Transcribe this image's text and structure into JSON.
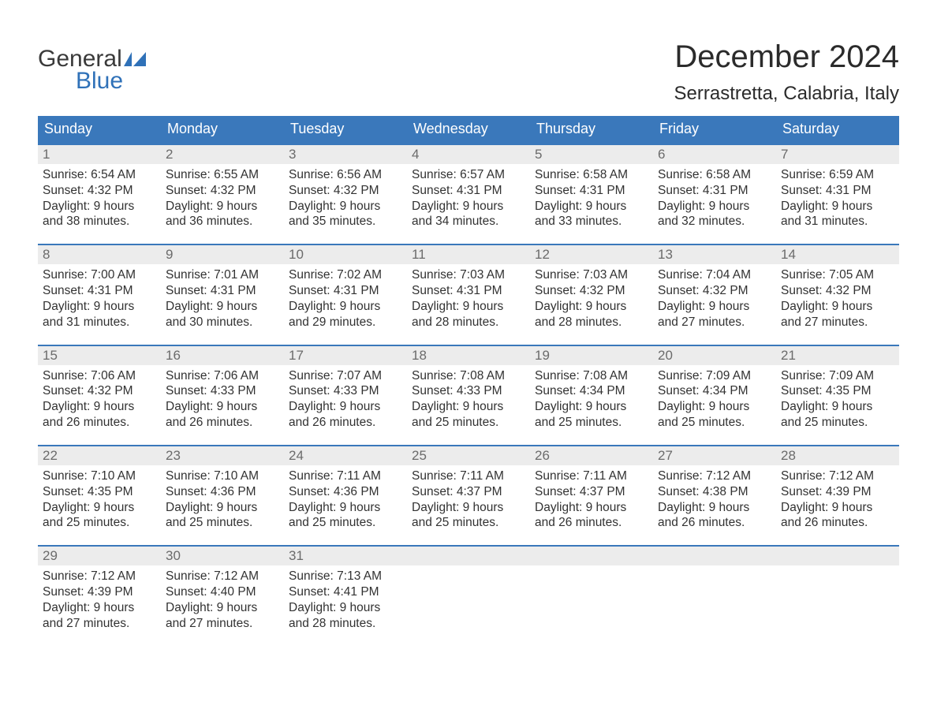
{
  "logo": {
    "line1": "General",
    "line2": "Blue",
    "accent_color": "#2f71b8",
    "text_color": "#3a3a3a"
  },
  "title": "December 2024",
  "location": "Serrastretta, Calabria, Italy",
  "colors": {
    "header_bg": "#3a78bb",
    "header_text": "#ffffff",
    "daynum_bg": "#ececec",
    "daynum_text": "#6b6b6b",
    "body_text": "#323232",
    "week_border": "#3a78bb",
    "page_bg": "#ffffff"
  },
  "weekdays": [
    "Sunday",
    "Monday",
    "Tuesday",
    "Wednesday",
    "Thursday",
    "Friday",
    "Saturday"
  ],
  "weeks": [
    [
      {
        "n": "1",
        "sunrise": "Sunrise: 6:54 AM",
        "sunset": "Sunset: 4:32 PM",
        "d1": "Daylight: 9 hours",
        "d2": "and 38 minutes."
      },
      {
        "n": "2",
        "sunrise": "Sunrise: 6:55 AM",
        "sunset": "Sunset: 4:32 PM",
        "d1": "Daylight: 9 hours",
        "d2": "and 36 minutes."
      },
      {
        "n": "3",
        "sunrise": "Sunrise: 6:56 AM",
        "sunset": "Sunset: 4:32 PM",
        "d1": "Daylight: 9 hours",
        "d2": "and 35 minutes."
      },
      {
        "n": "4",
        "sunrise": "Sunrise: 6:57 AM",
        "sunset": "Sunset: 4:31 PM",
        "d1": "Daylight: 9 hours",
        "d2": "and 34 minutes."
      },
      {
        "n": "5",
        "sunrise": "Sunrise: 6:58 AM",
        "sunset": "Sunset: 4:31 PM",
        "d1": "Daylight: 9 hours",
        "d2": "and 33 minutes."
      },
      {
        "n": "6",
        "sunrise": "Sunrise: 6:58 AM",
        "sunset": "Sunset: 4:31 PM",
        "d1": "Daylight: 9 hours",
        "d2": "and 32 minutes."
      },
      {
        "n": "7",
        "sunrise": "Sunrise: 6:59 AM",
        "sunset": "Sunset: 4:31 PM",
        "d1": "Daylight: 9 hours",
        "d2": "and 31 minutes."
      }
    ],
    [
      {
        "n": "8",
        "sunrise": "Sunrise: 7:00 AM",
        "sunset": "Sunset: 4:31 PM",
        "d1": "Daylight: 9 hours",
        "d2": "and 31 minutes."
      },
      {
        "n": "9",
        "sunrise": "Sunrise: 7:01 AM",
        "sunset": "Sunset: 4:31 PM",
        "d1": "Daylight: 9 hours",
        "d2": "and 30 minutes."
      },
      {
        "n": "10",
        "sunrise": "Sunrise: 7:02 AM",
        "sunset": "Sunset: 4:31 PM",
        "d1": "Daylight: 9 hours",
        "d2": "and 29 minutes."
      },
      {
        "n": "11",
        "sunrise": "Sunrise: 7:03 AM",
        "sunset": "Sunset: 4:31 PM",
        "d1": "Daylight: 9 hours",
        "d2": "and 28 minutes."
      },
      {
        "n": "12",
        "sunrise": "Sunrise: 7:03 AM",
        "sunset": "Sunset: 4:32 PM",
        "d1": "Daylight: 9 hours",
        "d2": "and 28 minutes."
      },
      {
        "n": "13",
        "sunrise": "Sunrise: 7:04 AM",
        "sunset": "Sunset: 4:32 PM",
        "d1": "Daylight: 9 hours",
        "d2": "and 27 minutes."
      },
      {
        "n": "14",
        "sunrise": "Sunrise: 7:05 AM",
        "sunset": "Sunset: 4:32 PM",
        "d1": "Daylight: 9 hours",
        "d2": "and 27 minutes."
      }
    ],
    [
      {
        "n": "15",
        "sunrise": "Sunrise: 7:06 AM",
        "sunset": "Sunset: 4:32 PM",
        "d1": "Daylight: 9 hours",
        "d2": "and 26 minutes."
      },
      {
        "n": "16",
        "sunrise": "Sunrise: 7:06 AM",
        "sunset": "Sunset: 4:33 PM",
        "d1": "Daylight: 9 hours",
        "d2": "and 26 minutes."
      },
      {
        "n": "17",
        "sunrise": "Sunrise: 7:07 AM",
        "sunset": "Sunset: 4:33 PM",
        "d1": "Daylight: 9 hours",
        "d2": "and 26 minutes."
      },
      {
        "n": "18",
        "sunrise": "Sunrise: 7:08 AM",
        "sunset": "Sunset: 4:33 PM",
        "d1": "Daylight: 9 hours",
        "d2": "and 25 minutes."
      },
      {
        "n": "19",
        "sunrise": "Sunrise: 7:08 AM",
        "sunset": "Sunset: 4:34 PM",
        "d1": "Daylight: 9 hours",
        "d2": "and 25 minutes."
      },
      {
        "n": "20",
        "sunrise": "Sunrise: 7:09 AM",
        "sunset": "Sunset: 4:34 PM",
        "d1": "Daylight: 9 hours",
        "d2": "and 25 minutes."
      },
      {
        "n": "21",
        "sunrise": "Sunrise: 7:09 AM",
        "sunset": "Sunset: 4:35 PM",
        "d1": "Daylight: 9 hours",
        "d2": "and 25 minutes."
      }
    ],
    [
      {
        "n": "22",
        "sunrise": "Sunrise: 7:10 AM",
        "sunset": "Sunset: 4:35 PM",
        "d1": "Daylight: 9 hours",
        "d2": "and 25 minutes."
      },
      {
        "n": "23",
        "sunrise": "Sunrise: 7:10 AM",
        "sunset": "Sunset: 4:36 PM",
        "d1": "Daylight: 9 hours",
        "d2": "and 25 minutes."
      },
      {
        "n": "24",
        "sunrise": "Sunrise: 7:11 AM",
        "sunset": "Sunset: 4:36 PM",
        "d1": "Daylight: 9 hours",
        "d2": "and 25 minutes."
      },
      {
        "n": "25",
        "sunrise": "Sunrise: 7:11 AM",
        "sunset": "Sunset: 4:37 PM",
        "d1": "Daylight: 9 hours",
        "d2": "and 25 minutes."
      },
      {
        "n": "26",
        "sunrise": "Sunrise: 7:11 AM",
        "sunset": "Sunset: 4:37 PM",
        "d1": "Daylight: 9 hours",
        "d2": "and 26 minutes."
      },
      {
        "n": "27",
        "sunrise": "Sunrise: 7:12 AM",
        "sunset": "Sunset: 4:38 PM",
        "d1": "Daylight: 9 hours",
        "d2": "and 26 minutes."
      },
      {
        "n": "28",
        "sunrise": "Sunrise: 7:12 AM",
        "sunset": "Sunset: 4:39 PM",
        "d1": "Daylight: 9 hours",
        "d2": "and 26 minutes."
      }
    ],
    [
      {
        "n": "29",
        "sunrise": "Sunrise: 7:12 AM",
        "sunset": "Sunset: 4:39 PM",
        "d1": "Daylight: 9 hours",
        "d2": "and 27 minutes."
      },
      {
        "n": "30",
        "sunrise": "Sunrise: 7:12 AM",
        "sunset": "Sunset: 4:40 PM",
        "d1": "Daylight: 9 hours",
        "d2": "and 27 minutes."
      },
      {
        "n": "31",
        "sunrise": "Sunrise: 7:13 AM",
        "sunset": "Sunset: 4:41 PM",
        "d1": "Daylight: 9 hours",
        "d2": "and 28 minutes."
      },
      null,
      null,
      null,
      null
    ]
  ]
}
